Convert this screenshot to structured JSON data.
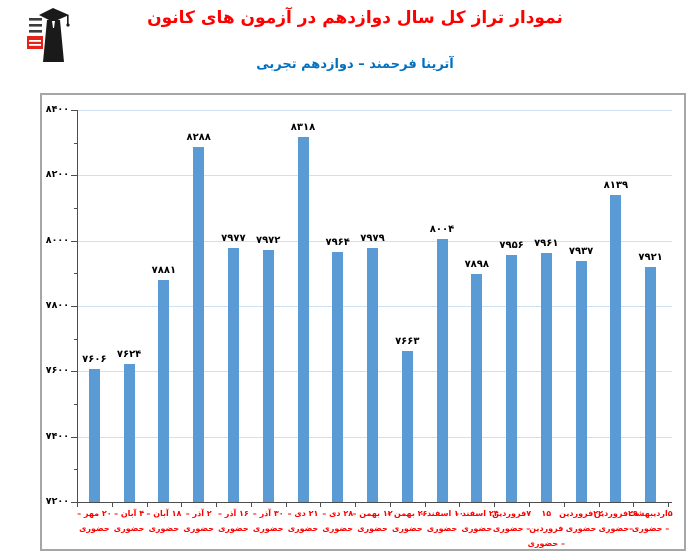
{
  "header": {
    "title": "نمودار تراز کل سال دوازدهم در آزمون های کانون",
    "subtitle": "آترینا فرحمند – دوازدهم تجربی",
    "logo": {
      "name": "kanoon-logo",
      "badge_color": "#e32219",
      "figure_color": "#1a1a1a"
    }
  },
  "chart_data": {
    "type": "bar",
    "title": "نمودار تراز کل سال دوازدهم در آزمون های کانون",
    "subtitle": "آترینا فرحمند – دوازدهم تجربی",
    "categories": [
      "۲۰ مهر – حضوری",
      "۴ آبان – حضوری",
      "۱۸ آبان – حضوری",
      "۲ آذر – حضوری",
      "۱۶ آذر – حضوری",
      "۳۰ آذر – حضوری",
      "۲۱ دی – حضوری",
      "۲۸ دی – حضوری",
      "۱۲ بهمن – حضوری",
      "۲۶ بهمن – حضوری",
      "۱۰ اسفند – حضوری",
      "۲۴ اسفند – حضوری",
      "۷ فروردین – حضوری",
      "۱۵ فروردین – حضوری",
      "۲۲ فروردین – حضوری",
      "۲۹ فروردین – حضوری",
      "۵ اردیبهشت – حضوری"
    ],
    "category_lines": [
      [
        "۲۰ مهر –",
        "حضوری"
      ],
      [
        "۴ آبان –",
        "حضوری"
      ],
      [
        "۱۸ آبان –",
        "حضوری"
      ],
      [
        "۲ آذر –",
        "حضوری"
      ],
      [
        "۱۶ آذر –",
        "حضوری"
      ],
      [
        "۳۰ آذر –",
        "حضوری"
      ],
      [
        "۲۱ دی –",
        "حضوری"
      ],
      [
        "۲۸ دی –",
        "حضوری"
      ],
      [
        "۱۲ بهمن –",
        "حضوری"
      ],
      [
        "۲۶ بهمن –",
        "حضوری"
      ],
      [
        "۱۰ اسفند –",
        "حضوری"
      ],
      [
        "۲۴ اسفند –",
        "حضوری"
      ],
      [
        "۷فروردین",
        "– حضوری"
      ],
      [
        "۱۵ فروردین",
        "– حضوری"
      ],
      [
        "۲۲فروردین",
        "حضوری"
      ],
      [
        "۲۹فروردین",
        "–حضوری"
      ],
      [
        "۵اردیبهشت",
        "– حضوری"
      ]
    ],
    "values": [
      7606,
      7624,
      7881,
      8288,
      7977,
      7972,
      8318,
      7964,
      7979,
      7663,
      8004,
      7898,
      7956,
      7961,
      7937,
      8139,
      7921
    ],
    "value_labels_fa": [
      "۷۶۰۶",
      "۷۶۲۴",
      "۷۸۸۱",
      "۸۲۸۸",
      "۷۹۷۷",
      "۷۹۷۲",
      "۸۳۱۸",
      "۷۹۶۴",
      "۷۹۷۹",
      "۷۶۶۳",
      "۸۰۰۴",
      "۷۸۹۸",
      "۷۹۵۶",
      "۷۹۶۱",
      "۷۹۳۷",
      "۸۱۳۹",
      "۷۹۲۱"
    ],
    "xlabel": "",
    "ylabel": "",
    "ylim": [
      7200,
      8400
    ],
    "y_major_step": 200,
    "y_minor_step": 100,
    "y_tick_labels_fa": [
      "۷۲۰۰",
      "۷۴۰۰",
      "۷۶۰۰",
      "۷۸۰۰",
      "۸۰۰۰",
      "۸۲۰۰",
      "۸۴۰۰"
    ],
    "grid": true,
    "legend_position": "none",
    "bar_color": "#5b9bd5",
    "gridline_color": "#cfe0f2",
    "axis_color": "#4d4d4d",
    "x_label_color": "#ff0000",
    "value_label_color": "#000000",
    "y_label_color": "#000000"
  }
}
